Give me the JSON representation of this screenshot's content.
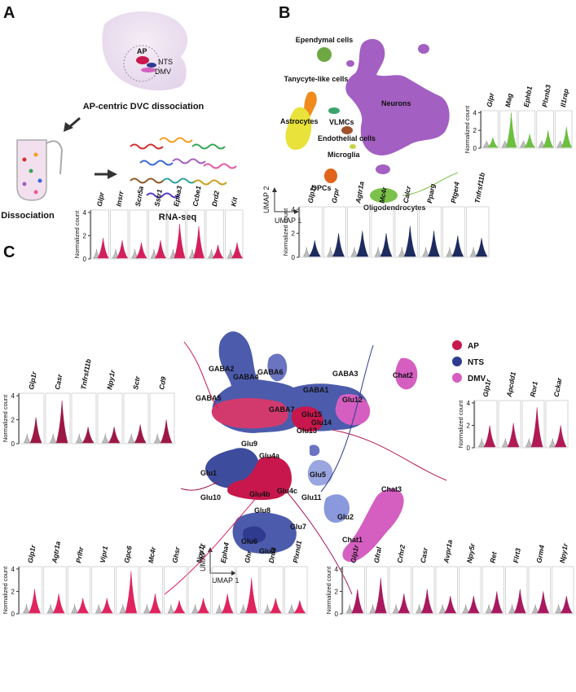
{
  "panels": {
    "a": "A",
    "b": "B",
    "c": "C"
  },
  "panel_a": {
    "brain_labels": {
      "ap": "AP",
      "nts": "NTS",
      "dmv": "DMV"
    },
    "caption": "AP-centric DVC dissociation",
    "dissociation": "Dissociation",
    "rnaseq": "RNA-seq"
  },
  "panel_b": {
    "clusters": [
      {
        "name": "Ependymal cells",
        "color": "#6ea843"
      },
      {
        "name": "Tanycyte-like cells",
        "color": "#f08a1c"
      },
      {
        "name": "Astrocytes",
        "color": "#e8e23a"
      },
      {
        "name": "VLMCs",
        "color": "#3aa56b"
      },
      {
        "name": "Endothelial cells",
        "color": "#a0522d"
      },
      {
        "name": "Microglia",
        "color": "#c8d24a"
      },
      {
        "name": "OPCs",
        "color": "#e0641a"
      },
      {
        "name": "Oligodendrocytes",
        "color": "#7cc24a"
      },
      {
        "name": "Neurons",
        "color": "#a35fc2"
      }
    ],
    "umap_x": "UMAP 1",
    "umap_y": "UMAP 2"
  },
  "panel_c": {
    "clusters": [
      "GABA2",
      "GABA4",
      "GABA6",
      "GABA3",
      "GABA1",
      "GABA5",
      "GABA7",
      "Glu12",
      "Glu15",
      "Glu14",
      "Glu13",
      "Glu9",
      "Glu4a",
      "Glu1",
      "Glu5",
      "Glu10",
      "Glu4b",
      "Glu4c",
      "Glu11",
      "Glu8",
      "Glu2",
      "Glu6",
      "Glu7",
      "Glu3",
      "Chat2",
      "Chat3",
      "Chat1"
    ],
    "legend": [
      {
        "name": "AP",
        "color": "#c8174c"
      },
      {
        "name": "NTS",
        "color": "#2e3b8f"
      },
      {
        "name": "DMV",
        "color": "#d55fc0"
      }
    ],
    "umap_x": "UMAP 1",
    "umap_y": "UMAP 2"
  },
  "violin_axis": {
    "ylabel": "Normalized count",
    "ticks": [
      "0",
      "2",
      "4"
    ]
  },
  "violin_sets": [
    {
      "genes": [
        "Glpr",
        "Mag",
        "Ephb1",
        "Plxnb3",
        "Il1rap"
      ],
      "color": "#6cbf3f"
    },
    {
      "genes": [
        "Glpr",
        "Insrr",
        "Scn5a",
        "Sstr1",
        "Epha3",
        "Ccbe1",
        "Drd2",
        "Kit"
      ],
      "color": "#d41f5a"
    },
    {
      "genes": [
        "Glp1r",
        "Grpr",
        "Agtr1a",
        "Mc4r",
        "Calcr",
        "Pparg",
        "Ptger4",
        "Tnfrsf11b"
      ],
      "color": "#1d2b5e"
    },
    {
      "genes": [
        "Glp1r",
        "Casr",
        "Tnfrsf11b",
        "Npy1r",
        "Sctr",
        "Cd9"
      ],
      "color": "#9c1843"
    },
    {
      "genes": [
        "Glp1r",
        "Apcdd1",
        "Ror1",
        "Cckar"
      ],
      "color": "#b01a55"
    },
    {
      "genes": [
        "Glp1r",
        "Agtr1a",
        "Prlhr",
        "Vipr1",
        "Gpc6",
        "Mc4r",
        "Ghsr",
        "Npy1r",
        "Epha4",
        "Ghr",
        "Drd3",
        "Plxnd1"
      ],
      "color": "#e0245e"
    },
    {
      "genes": [
        "Glp1r",
        "Gfral",
        "Crhr2",
        "Casr",
        "Avpr1a",
        "Npy5r",
        "Ret",
        "Flrt3",
        "Grm4",
        "Npy1r"
      ],
      "color": "#a8195f"
    }
  ]
}
